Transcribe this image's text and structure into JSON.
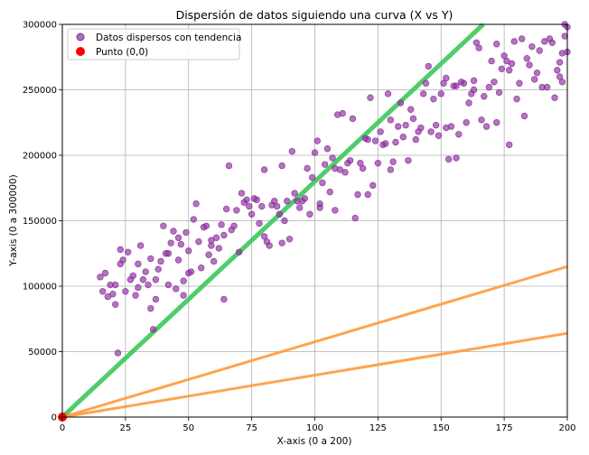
{
  "chart_data": {
    "type": "scatter",
    "title": "Dispersión de datos siguiendo una curva (X vs Y)",
    "xlabel": "X-axis (0 a 200)",
    "ylabel": "Y-axis (0 a 300000)",
    "xlim": [
      0,
      200
    ],
    "ylim": [
      0,
      300000
    ],
    "x_ticks": [
      0,
      25,
      50,
      75,
      100,
      125,
      150,
      175,
      200
    ],
    "y_ticks": [
      0,
      50000,
      100000,
      150000,
      200000,
      250000,
      300000
    ],
    "grid": true,
    "legend_placement": "top-left",
    "legend": [
      {
        "label": "Datos dispersos con tendencia",
        "color": "#8b2d9b",
        "marker": "circle-small"
      },
      {
        "label": "Punto (0,0)",
        "color": "#ff0000",
        "marker": "circle-large"
      }
    ],
    "lines": [
      {
        "color": "#3cc85a",
        "width": 5,
        "points": [
          [
            0,
            0
          ],
          [
            166.7,
            300000
          ]
        ]
      },
      {
        "color": "#ff9a3c",
        "width": 3,
        "points": [
          [
            0,
            0
          ],
          [
            200,
            115000
          ]
        ]
      },
      {
        "color": "#ff9a3c",
        "width": 3,
        "points": [
          [
            0,
            0
          ],
          [
            200,
            64000
          ]
        ]
      }
    ],
    "origin_point": {
      "x": 0,
      "y": 0,
      "color": "#ff0000"
    },
    "series": [
      {
        "color": "#8b2d9b",
        "points": [
          [
            15,
            107000
          ],
          [
            16,
            96000
          ],
          [
            17,
            110000
          ],
          [
            18,
            92000
          ],
          [
            19,
            101000
          ],
          [
            20,
            94000
          ],
          [
            21,
            101000
          ],
          [
            21,
            86000
          ],
          [
            22,
            49000
          ],
          [
            23,
            117000
          ],
          [
            23,
            128000
          ],
          [
            24,
            120000
          ],
          [
            25,
            96000
          ],
          [
            26,
            126000
          ],
          [
            27,
            105000
          ],
          [
            28,
            108000
          ],
          [
            29,
            93000
          ],
          [
            30,
            99000
          ],
          [
            30,
            117000
          ],
          [
            31,
            131000
          ],
          [
            32,
            105000
          ],
          [
            33,
            111000
          ],
          [
            34,
            101000
          ],
          [
            35,
            83000
          ],
          [
            35,
            121000
          ],
          [
            36,
            67000
          ],
          [
            37,
            105000
          ],
          [
            37,
            90000
          ],
          [
            38,
            113000
          ],
          [
            39,
            119000
          ],
          [
            40,
            146000
          ],
          [
            41,
            125000
          ],
          [
            42,
            125000
          ],
          [
            42,
            101000
          ],
          [
            43,
            133000
          ],
          [
            44,
            142000
          ],
          [
            45,
            98000
          ],
          [
            46,
            120000
          ],
          [
            46,
            137000
          ],
          [
            47,
            132000
          ],
          [
            48,
            93000
          ],
          [
            48,
            104000
          ],
          [
            49,
            141000
          ],
          [
            50,
            127000
          ],
          [
            50,
            110000
          ],
          [
            51,
            111000
          ],
          [
            52,
            151000
          ],
          [
            53,
            163000
          ],
          [
            54,
            134000
          ],
          [
            55,
            114000
          ],
          [
            56,
            145000
          ],
          [
            57,
            146000
          ],
          [
            58,
            124000
          ],
          [
            59,
            135000
          ],
          [
            59,
            131000
          ],
          [
            60,
            119000
          ],
          [
            61,
            137000
          ],
          [
            62,
            129000
          ],
          [
            63,
            147000
          ],
          [
            64,
            90000
          ],
          [
            64,
            139000
          ],
          [
            65,
            159000
          ],
          [
            66,
            192000
          ],
          [
            67,
            143000
          ],
          [
            68,
            146000
          ],
          [
            69,
            158000
          ],
          [
            70,
            126000
          ],
          [
            71,
            171000
          ],
          [
            72,
            164000
          ],
          [
            73,
            166000
          ],
          [
            74,
            161000
          ],
          [
            75,
            155000
          ],
          [
            76,
            167000
          ],
          [
            77,
            166000
          ],
          [
            78,
            148000
          ],
          [
            79,
            161000
          ],
          [
            80,
            189000
          ],
          [
            80,
            138000
          ],
          [
            81,
            134000
          ],
          [
            82,
            131000
          ],
          [
            83,
            162000
          ],
          [
            84,
            165000
          ],
          [
            85,
            161000
          ],
          [
            86,
            155000
          ],
          [
            87,
            192000
          ],
          [
            87,
            133000
          ],
          [
            88,
            150000
          ],
          [
            89,
            165000
          ],
          [
            90,
            136000
          ],
          [
            91,
            203000
          ],
          [
            92,
            171000
          ],
          [
            93,
            165000
          ],
          [
            94,
            160000
          ],
          [
            95,
            165000
          ],
          [
            96,
            167000
          ],
          [
            97,
            190000
          ],
          [
            98,
            155000
          ],
          [
            99,
            183000
          ],
          [
            100,
            202000
          ],
          [
            101,
            211000
          ],
          [
            102,
            163000
          ],
          [
            102,
            160000
          ],
          [
            103,
            179000
          ],
          [
            104,
            193000
          ],
          [
            105,
            205000
          ],
          [
            106,
            172000
          ],
          [
            107,
            198000
          ],
          [
            108,
            190000
          ],
          [
            108,
            158000
          ],
          [
            109,
            231000
          ],
          [
            110,
            189000
          ],
          [
            111,
            232000
          ],
          [
            112,
            187000
          ],
          [
            113,
            194000
          ],
          [
            114,
            196000
          ],
          [
            115,
            228000
          ],
          [
            116,
            152000
          ],
          [
            117,
            170000
          ],
          [
            118,
            194000
          ],
          [
            119,
            190000
          ],
          [
            120,
            213000
          ],
          [
            121,
            212000
          ],
          [
            121,
            170000
          ],
          [
            122,
            244000
          ],
          [
            123,
            177000
          ],
          [
            124,
            211000
          ],
          [
            125,
            194000
          ],
          [
            126,
            218000
          ],
          [
            127,
            208000
          ],
          [
            128,
            209000
          ],
          [
            129,
            247000
          ],
          [
            130,
            227000
          ],
          [
            130,
            189000
          ],
          [
            131,
            195000
          ],
          [
            132,
            210000
          ],
          [
            133,
            222000
          ],
          [
            134,
            240000
          ],
          [
            135,
            214000
          ],
          [
            136,
            223000
          ],
          [
            137,
            196000
          ],
          [
            138,
            235000
          ],
          [
            139,
            228000
          ],
          [
            140,
            212000
          ],
          [
            141,
            218000
          ],
          [
            142,
            221000
          ],
          [
            143,
            247000
          ],
          [
            144,
            255000
          ],
          [
            145,
            268000
          ],
          [
            146,
            218000
          ],
          [
            147,
            243000
          ],
          [
            148,
            223000
          ],
          [
            149,
            215000
          ],
          [
            150,
            247000
          ],
          [
            151,
            255000
          ],
          [
            152,
            259000
          ],
          [
            152,
            221000
          ],
          [
            153,
            197000
          ],
          [
            154,
            222000
          ],
          [
            155,
            253000
          ],
          [
            156,
            253000
          ],
          [
            156,
            198000
          ],
          [
            157,
            216000
          ],
          [
            158,
            256000
          ],
          [
            159,
            255000
          ],
          [
            160,
            225000
          ],
          [
            161,
            240000
          ],
          [
            162,
            247000
          ],
          [
            163,
            257000
          ],
          [
            163,
            250000
          ],
          [
            164,
            286000
          ],
          [
            165,
            282000
          ],
          [
            166,
            227000
          ],
          [
            167,
            245000
          ],
          [
            168,
            222000
          ],
          [
            169,
            252000
          ],
          [
            170,
            272000
          ],
          [
            171,
            256000
          ],
          [
            172,
            285000
          ],
          [
            172,
            225000
          ],
          [
            173,
            248000
          ],
          [
            174,
            266000
          ],
          [
            175,
            276000
          ],
          [
            176,
            272000
          ],
          [
            177,
            208000
          ],
          [
            177,
            265000
          ],
          [
            178,
            270000
          ],
          [
            179,
            287000
          ],
          [
            180,
            243000
          ],
          [
            181,
            255000
          ],
          [
            182,
            289000
          ],
          [
            183,
            230000
          ],
          [
            184,
            274000
          ],
          [
            185,
            269000
          ],
          [
            186,
            283000
          ],
          [
            187,
            258000
          ],
          [
            188,
            263000
          ],
          [
            189,
            280000
          ],
          [
            190,
            252000
          ],
          [
            191,
            287000
          ],
          [
            192,
            252000
          ],
          [
            193,
            289000
          ],
          [
            194,
            286000
          ],
          [
            195,
            244000
          ],
          [
            196,
            265000
          ],
          [
            197,
            260000
          ],
          [
            198,
            278000
          ],
          [
            199,
            300000
          ],
          [
            200,
            298000
          ],
          [
            199,
            291000
          ],
          [
            200,
            279000
          ],
          [
            198,
            256000
          ],
          [
            197,
            271000
          ]
        ]
      }
    ]
  }
}
